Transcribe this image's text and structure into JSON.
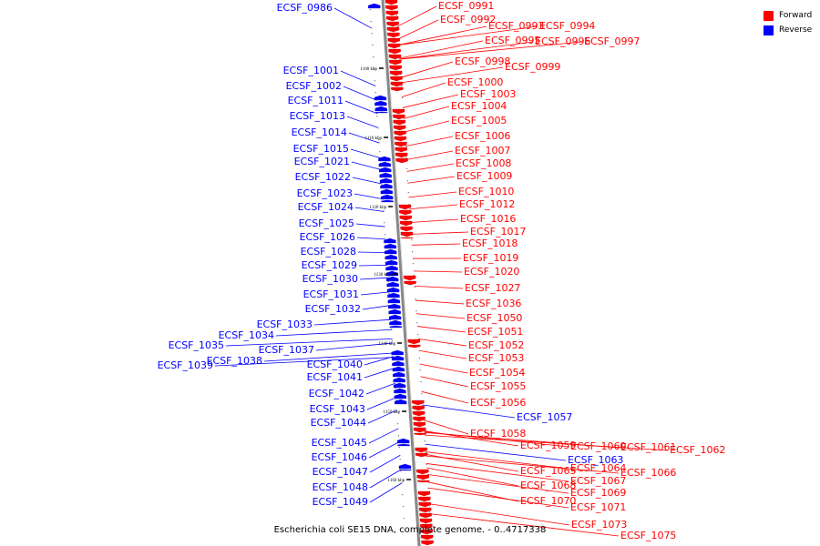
{
  "caption": "Escherichia coli SE15 DNA, complete genome. - 0..4717338",
  "legend": [
    {
      "label": "Forward",
      "color": "#ff0000"
    },
    {
      "label": "Reverse",
      "color": "#0000ff"
    }
  ],
  "ticks": [
    "1100 kbp",
    "1110 kbp",
    "1120 kbp",
    "1130 kbp",
    "1140 kbp",
    "1150 kbp",
    "1160 kbp"
  ],
  "forward_genes": [
    "ECSF_0991",
    "ECSF_0992",
    "ECSF_0993",
    "ECSF_0994",
    "ECSF_0995",
    "ECSF_0996",
    "ECSF_0997",
    "ECSF_0998",
    "ECSF_0999",
    "ECSF_1000",
    "ECSF_1003",
    "ECSF_1004",
    "ECSF_1005",
    "ECSF_1006",
    "ECSF_1007",
    "ECSF_1008",
    "ECSF_1009",
    "ECSF_1010",
    "ECSF_1012",
    "ECSF_1016",
    "ECSF_1017",
    "ECSF_1018",
    "ECSF_1019",
    "ECSF_1020",
    "ECSF_1027",
    "ECSF_1036",
    "ECSF_1050",
    "ECSF_1051",
    "ECSF_1052",
    "ECSF_1053",
    "ECSF_1054",
    "ECSF_1055",
    "ECSF_1056",
    "ECSF_1058",
    "ECSF_1059",
    "ECSF_1060",
    "ECSF_1061",
    "ECSF_1062",
    "ECSF_1065",
    "ECSF_1064",
    "ECSF_1066",
    "ECSF_1067",
    "ECSF_1068",
    "ECSF_1069",
    "ECSF_1070",
    "ECSF_1071",
    "ECSF_1073",
    "ECSF_1075"
  ],
  "reverse_genes": [
    "ECSF_0986",
    "ECSF_1001",
    "ECSF_1002",
    "ECSF_1011",
    "ECSF_1013",
    "ECSF_1014",
    "ECSF_1015",
    "ECSF_1021",
    "ECSF_1022",
    "ECSF_1023",
    "ECSF_1024",
    "ECSF_1025",
    "ECSF_1026",
    "ECSF_1028",
    "ECSF_1029",
    "ECSF_1030",
    "ECSF_1031",
    "ECSF_1032",
    "ECSF_1033",
    "ECSF_1034",
    "ECSF_1035",
    "ECSF_1037",
    "ECSF_1038",
    "ECSF_1039",
    "ECSF_1040",
    "ECSF_1041",
    "ECSF_1042",
    "ECSF_1043",
    "ECSF_1044",
    "ECSF_1045",
    "ECSF_1046",
    "ECSF_1047",
    "ECSF_1048",
    "ECSF_1049",
    "ECSF_1057",
    "ECSF_1063"
  ]
}
